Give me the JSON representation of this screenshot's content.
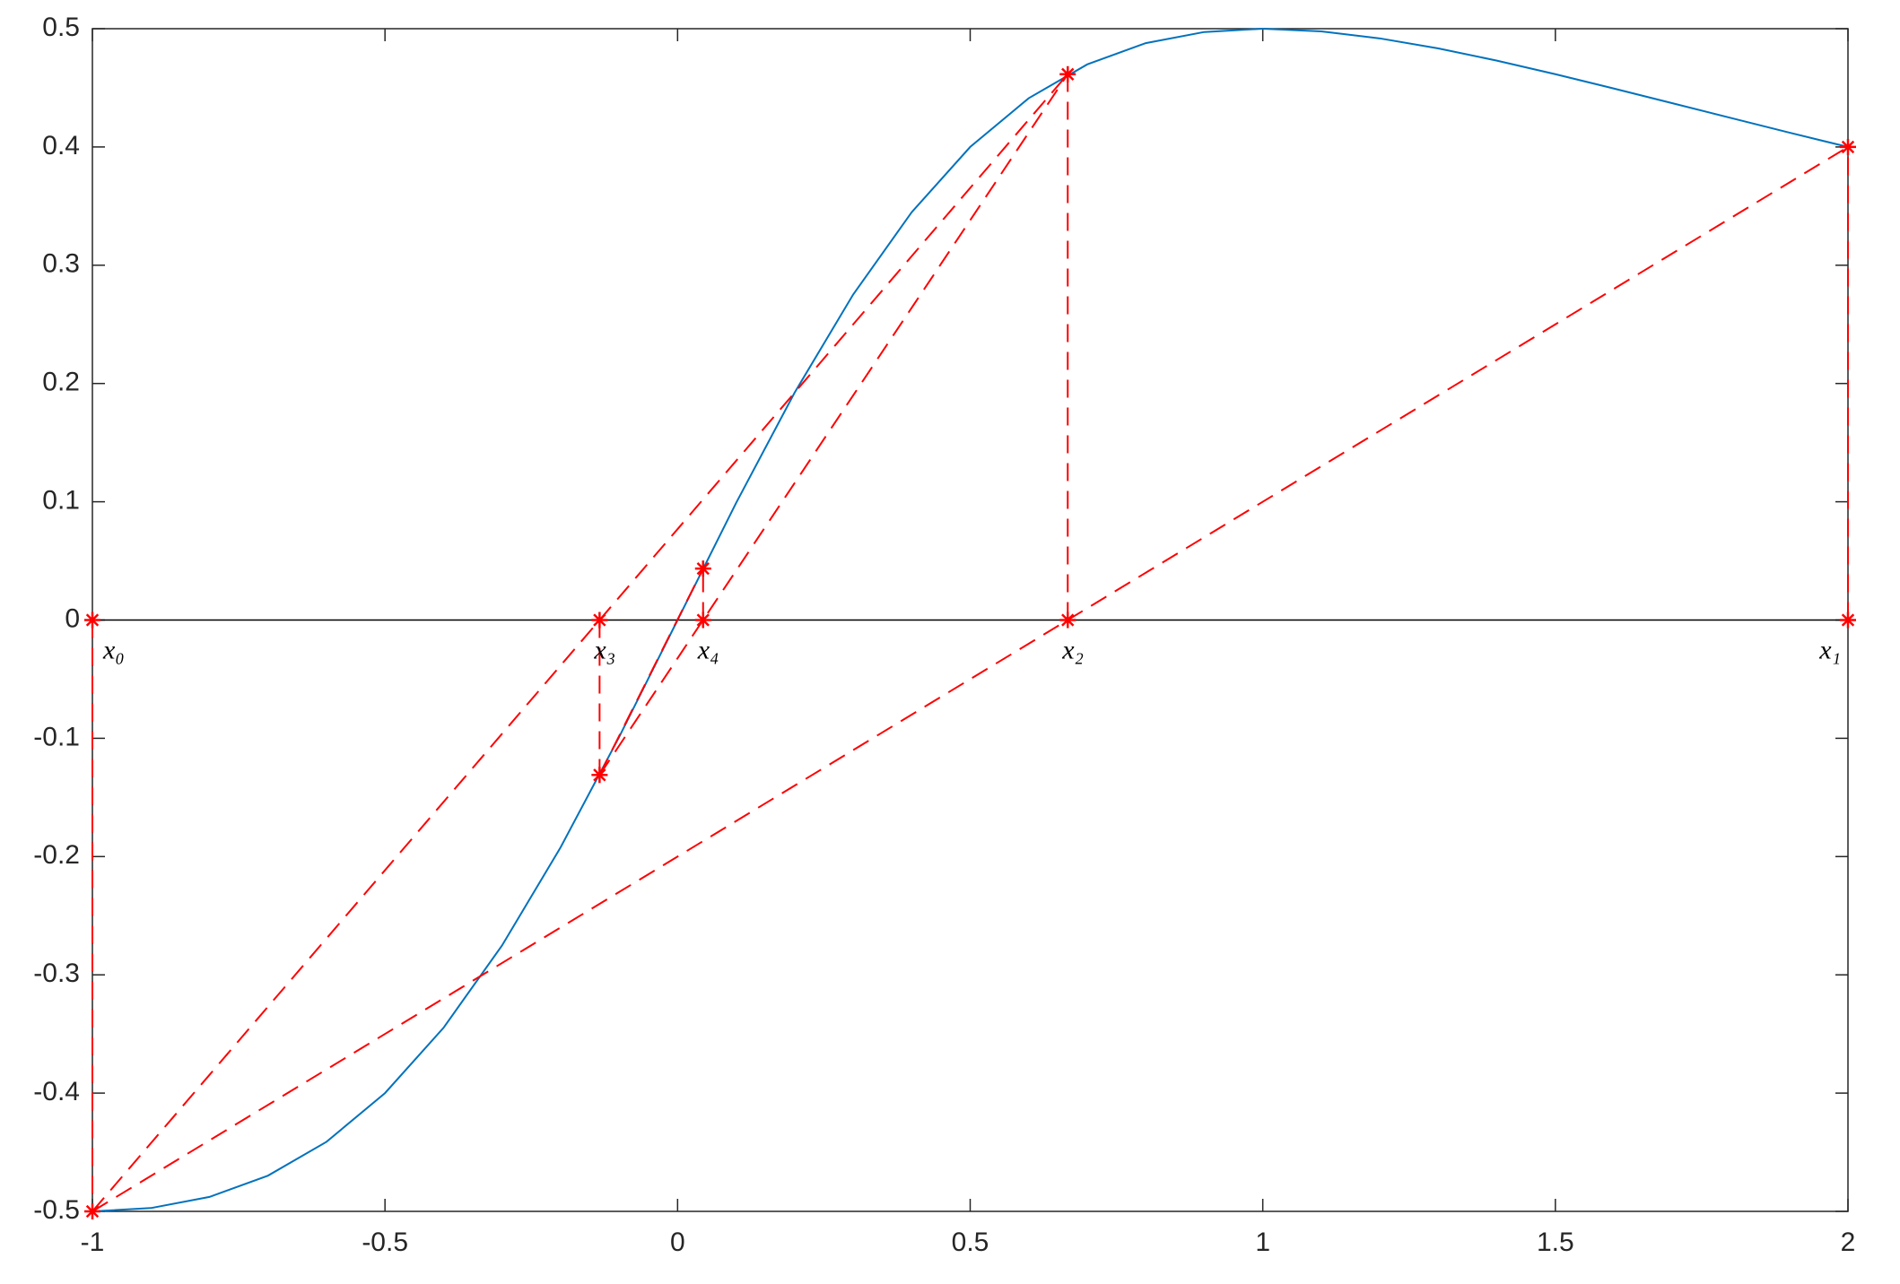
{
  "chart_data": {
    "type": "line",
    "xlim": [
      -1,
      2
    ],
    "ylim": [
      -0.5,
      0.5
    ],
    "xticks": [
      -1,
      -0.5,
      0,
      0.5,
      1,
      1.5,
      2
    ],
    "yticks": [
      -0.5,
      -0.4,
      -0.3,
      -0.2,
      -0.1,
      0,
      0.1,
      0.2,
      0.3,
      0.4,
      0.5
    ],
    "grid": false,
    "box": true,
    "curve": {
      "color": "#0072bd",
      "x": [
        -1,
        -0.9,
        -0.8,
        -0.7,
        -0.6,
        -0.5,
        -0.4,
        -0.3,
        -0.2,
        -0.1,
        0,
        0.1,
        0.2,
        0.3,
        0.4,
        0.5,
        0.6,
        0.7,
        0.8,
        0.9,
        1,
        1.1,
        1.2,
        1.3,
        1.4,
        1.5,
        1.6,
        1.7,
        1.8,
        1.9,
        2
      ],
      "values": [
        -0.5,
        -0.4972,
        -0.4878,
        -0.4698,
        -0.4412,
        -0.4,
        -0.3448,
        -0.2752,
        -0.1923,
        -0.099,
        0,
        0.099,
        0.1923,
        0.2752,
        0.3448,
        0.4,
        0.4412,
        0.4698,
        0.4878,
        0.4972,
        0.5,
        0.4977,
        0.4918,
        0.4833,
        0.473,
        0.4615,
        0.4494,
        0.437,
        0.4245,
        0.4121,
        0.4
      ]
    },
    "iterates": {
      "color": "#ff0000",
      "labels": [
        "x₀",
        "x₁",
        "x₂",
        "x₃",
        "x₄"
      ],
      "x": [
        -1,
        2,
        0.6667,
        -0.1333,
        0.0436
      ],
      "values": [
        -0.5,
        0.4,
        0.4615,
        -0.131,
        0.0435
      ]
    },
    "secants": [
      {
        "x": [
          -1,
          2
        ],
        "values": [
          -0.5,
          0.4
        ]
      },
      {
        "x": [
          -1,
          0.6667
        ],
        "values": [
          -0.5,
          0.4615
        ]
      },
      {
        "x": [
          -0.1333,
          0.6667
        ],
        "values": [
          -0.131,
          0.4615
        ]
      },
      {
        "x": [
          -0.1333,
          0.0436
        ],
        "values": [
          -0.131,
          0.0435
        ]
      }
    ]
  }
}
